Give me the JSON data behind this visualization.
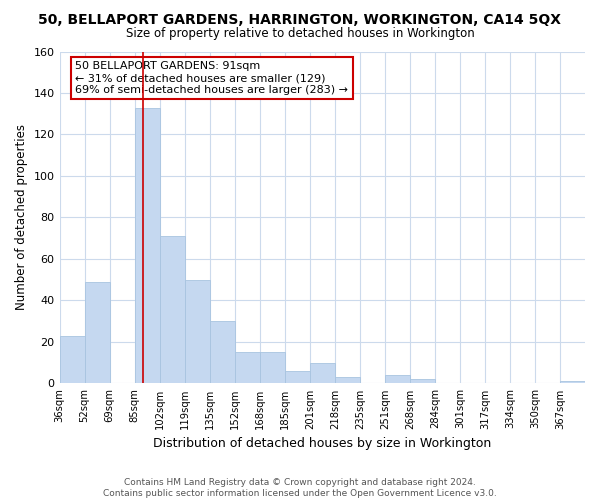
{
  "title": "50, BELLAPORT GARDENS, HARRINGTON, WORKINGTON, CA14 5QX",
  "subtitle": "Size of property relative to detached houses in Workington",
  "xlabel": "Distribution of detached houses by size in Workington",
  "ylabel": "Number of detached properties",
  "categories": [
    "36sqm",
    "52sqm",
    "69sqm",
    "85sqm",
    "102sqm",
    "119sqm",
    "135sqm",
    "152sqm",
    "168sqm",
    "185sqm",
    "201sqm",
    "218sqm",
    "235sqm",
    "251sqm",
    "268sqm",
    "284sqm",
    "301sqm",
    "317sqm",
    "334sqm",
    "350sqm",
    "367sqm"
  ],
  "values": [
    23,
    49,
    0,
    133,
    71,
    50,
    30,
    15,
    15,
    6,
    10,
    3,
    0,
    4,
    2,
    0,
    0,
    0,
    0,
    0,
    1
  ],
  "bar_color": "#c5d8f0",
  "bar_edge_color": "#a8c4e0",
  "grid_color": "#ccdaec",
  "annotation_line_color": "#cc0000",
  "annotation_box_text": "50 BELLAPORT GARDENS: 91sqm\n← 31% of detached houses are smaller (129)\n69% of semi-detached houses are larger (283) →",
  "footer_line1": "Contains HM Land Registry data © Crown copyright and database right 2024.",
  "footer_line2": "Contains public sector information licensed under the Open Government Licence v3.0.",
  "ylim": [
    0,
    160
  ],
  "n_bins": 21,
  "bin_width": 1
}
